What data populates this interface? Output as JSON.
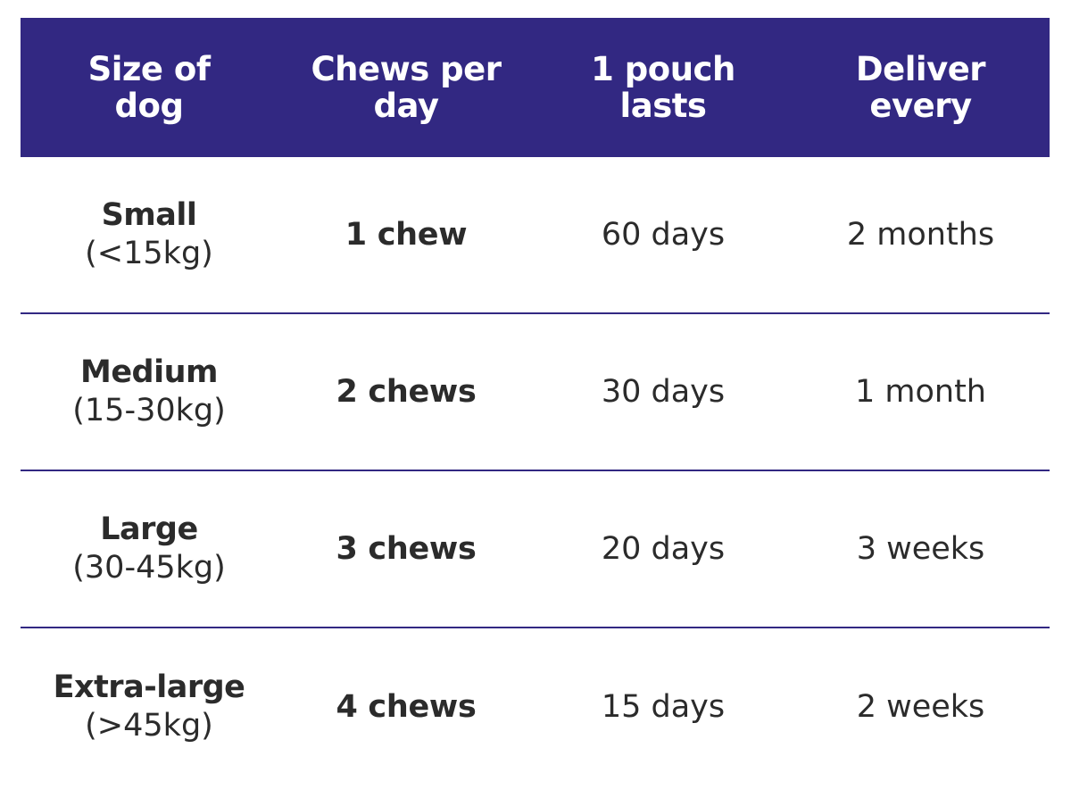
{
  "table": {
    "colors": {
      "header_bg": "#322882",
      "header_text": "#ffffff",
      "body_text": "#2b2b2b",
      "divider": "#322882"
    },
    "headers": [
      "Size of\ndog",
      "Chews per\nday",
      "1 pouch\nlasts",
      "Deliver\nevery"
    ],
    "rows": [
      {
        "size": "Small",
        "range": "(<15kg)",
        "chews": "1 chew",
        "lasts": "60 days",
        "deliver": "2 months"
      },
      {
        "size": "Medium",
        "range": "(15-30kg)",
        "chews": "2 chews",
        "lasts": "30 days",
        "deliver": "1 month"
      },
      {
        "size": "Large",
        "range": "(30-45kg)",
        "chews": "3 chews",
        "lasts": "20 days",
        "deliver": "3 weeks"
      },
      {
        "size": "Extra-large",
        "range": "(>45kg)",
        "chews": "4 chews",
        "lasts": "15 days",
        "deliver": "2 weeks"
      }
    ]
  }
}
